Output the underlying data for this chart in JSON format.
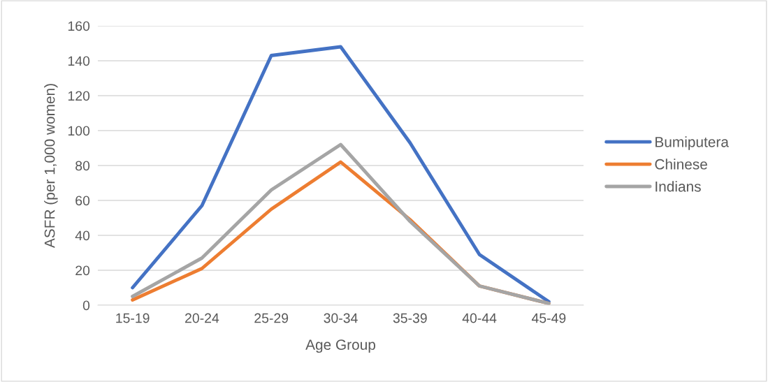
{
  "chart_data": {
    "type": "line",
    "xlabel": "Age Group",
    "ylabel": "ASFR (per 1,000 women)",
    "categories": [
      "15-19",
      "20-24",
      "25-29",
      "30-34",
      "35-39",
      "40-44",
      "45-49"
    ],
    "series": [
      {
        "name": "Bumiputera",
        "color": "#4472c4",
        "values": [
          10,
          57,
          143,
          148,
          93,
          29,
          2
        ]
      },
      {
        "name": "Chinese",
        "color": "#ed7d31",
        "values": [
          3,
          21,
          55,
          82,
          49,
          11,
          1
        ]
      },
      {
        "name": "Indians",
        "color": "#a5a5a5",
        "values": [
          5,
          27,
          66,
          92,
          48,
          11,
          1
        ]
      }
    ],
    "ylim": [
      0,
      160
    ],
    "yticks": [
      0,
      20,
      40,
      60,
      80,
      100,
      120,
      140,
      160
    ],
    "grid": "y",
    "legend": "right",
    "marker": "none",
    "line_style": "solid"
  }
}
